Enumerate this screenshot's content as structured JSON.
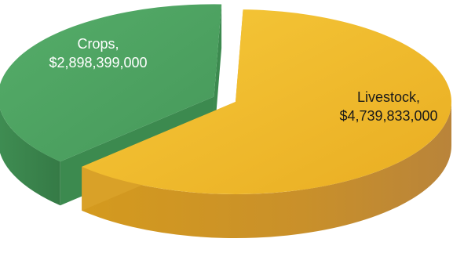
{
  "chart_data": {
    "type": "pie",
    "title": "",
    "slices": [
      {
        "label": "Crops",
        "value": 2898399000,
        "value_text": "$2,898,399,000",
        "color": "#4ca561",
        "exploded": true
      },
      {
        "label": "Livestock",
        "value": 4739833000,
        "value_text": "$4,739,833,000",
        "color": "#f1bb2b",
        "exploded": false
      }
    ],
    "style": "3d-exploded",
    "legend": "none"
  }
}
